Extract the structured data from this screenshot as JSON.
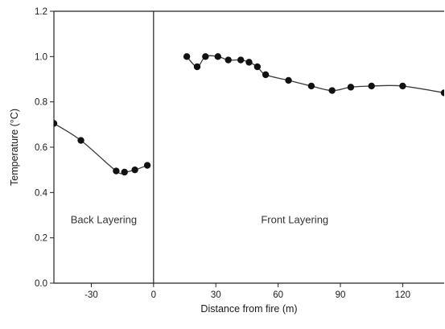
{
  "chart_data": {
    "type": "scatter",
    "title": "",
    "xlabel": "Distance from fire (m)",
    "ylabel": "Temperature (°C)",
    "xlim": [
      -48,
      140
    ],
    "ylim": [
      0.0,
      1.2
    ],
    "x_ticks": [
      -30,
      0,
      30,
      60,
      90,
      120
    ],
    "y_ticks": [
      "0.0",
      "0.2",
      "0.4",
      "0.6",
      "0.8",
      "1.0",
      "1.2"
    ],
    "divider_x": 0,
    "grid": false,
    "series": [
      {
        "points": [
          [
            -48,
            0.705
          ],
          [
            -35,
            0.63
          ],
          [
            -18,
            0.495
          ],
          [
            -14,
            0.49
          ],
          [
            -9,
            0.5
          ],
          [
            -3,
            0.52
          ]
        ]
      },
      {
        "points": [
          [
            16,
            1.0
          ],
          [
            21,
            0.955
          ],
          [
            25,
            1.0
          ],
          [
            31,
            1.0
          ],
          [
            36,
            0.985
          ],
          [
            42,
            0.985
          ],
          [
            46,
            0.975
          ],
          [
            50,
            0.955
          ],
          [
            54,
            0.92
          ],
          [
            65,
            0.895
          ],
          [
            76,
            0.87
          ],
          [
            86,
            0.85
          ],
          [
            95,
            0.865
          ],
          [
            105,
            0.87
          ],
          [
            120,
            0.87
          ],
          [
            140,
            0.84
          ]
        ]
      }
    ],
    "annotations": [
      {
        "text": "Back Layering",
        "x": -24,
        "y": 0.265
      },
      {
        "text": "Front Layering",
        "x": 68,
        "y": 0.265
      }
    ],
    "colors": {
      "line": "#3a3a3a",
      "marker": "#111111",
      "axis": "#222222",
      "text": "#1a1a1a"
    }
  }
}
